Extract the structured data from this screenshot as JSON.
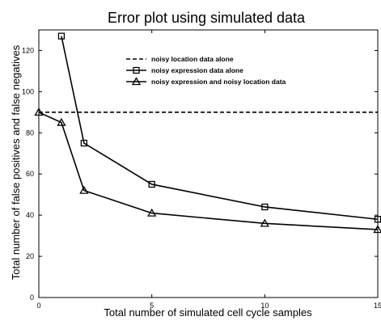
{
  "chart_data": {
    "type": "line",
    "title": "Error plot using simulated data",
    "xlabel": "Total number of simulated cell cycle samples",
    "ylabel": "Total number of false positives and false negatives",
    "xlim": [
      0,
      15
    ],
    "ylim": [
      0,
      130
    ],
    "xticks": [
      0,
      5,
      10,
      15
    ],
    "yticks": [
      0,
      20,
      40,
      60,
      80,
      100,
      120
    ],
    "grid": false,
    "legend_position": "top-center",
    "series": [
      {
        "name": "noisy location data alone",
        "style": "dashed",
        "marker": "none",
        "color": "#000000",
        "x": [
          0,
          15
        ],
        "y": [
          90,
          90
        ]
      },
      {
        "name": "noisy expression data alone",
        "style": "solid",
        "marker": "square",
        "color": "#000000",
        "x": [
          1,
          2,
          5,
          10,
          15
        ],
        "y": [
          127,
          75,
          55,
          44,
          38
        ]
      },
      {
        "name": "noisy expression and noisy location data",
        "style": "solid",
        "marker": "triangle",
        "color": "#000000",
        "x": [
          0,
          1,
          2,
          5,
          10,
          15
        ],
        "y": [
          90,
          85,
          52,
          41,
          36,
          33
        ]
      }
    ]
  }
}
